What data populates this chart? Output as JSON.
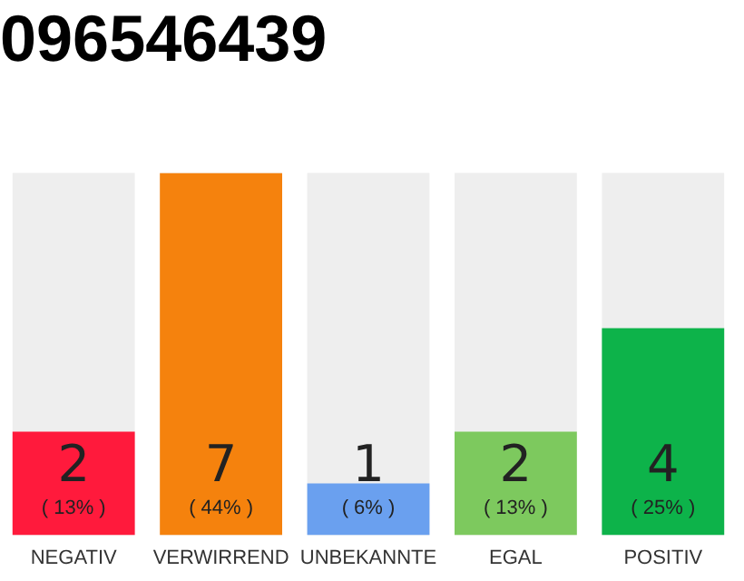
{
  "chart_data": {
    "type": "bar",
    "title": "096546439",
    "categories": [
      "NEGATIV",
      "VERWIRREND",
      "UNBEKANNTE",
      "EGAL",
      "POSITIV"
    ],
    "values": [
      2,
      7,
      1,
      2,
      4
    ],
    "colors": [
      "#ff1a3c",
      "#f5820d",
      "#6aa0ef",
      "#7dc95e",
      "#0db34a"
    ],
    "value_labels": [
      "2\n( 13% )",
      "7\n( 44% )",
      "1\n( 6% )",
      "2\n( 13% )",
      "4\n( 25% )"
    ],
    "grid": false,
    "legend": false
  }
}
